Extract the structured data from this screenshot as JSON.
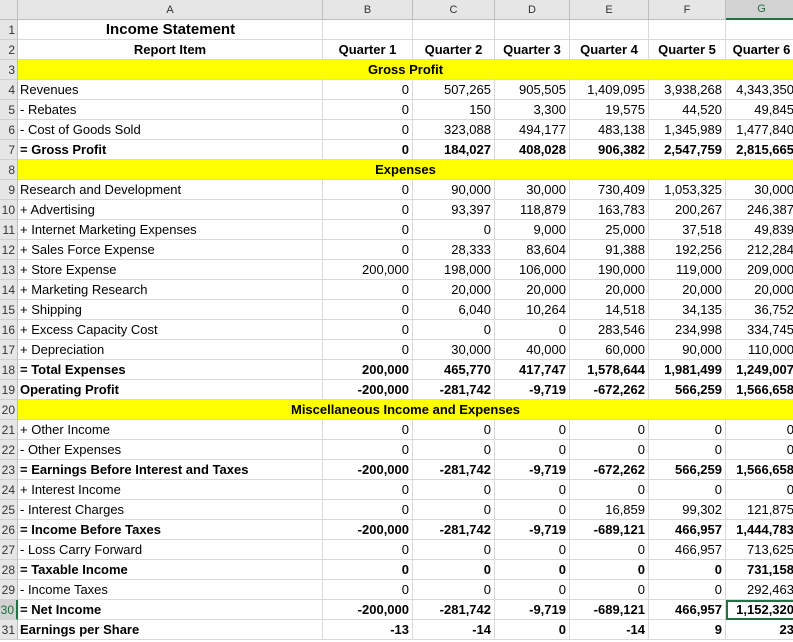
{
  "columns": [
    "A",
    "B",
    "C",
    "D",
    "E",
    "F",
    "G"
  ],
  "row_numbers": [
    "1",
    "2",
    "3",
    "4",
    "5",
    "6",
    "7",
    "8",
    "9",
    "10",
    "11",
    "12",
    "13",
    "14",
    "15",
    "16",
    "17",
    "18",
    "19",
    "20",
    "21",
    "22",
    "23",
    "24",
    "25",
    "26",
    "27",
    "28",
    "29",
    "30",
    "31"
  ],
  "title": "Income Statement",
  "report_item_label": "Report Item",
  "quarters": [
    "Quarter 1",
    "Quarter 2",
    "Quarter 3",
    "Quarter 4",
    "Quarter 5",
    "Quarter 6"
  ],
  "sections": {
    "gross_profit": "Gross Profit",
    "expenses": "Expenses",
    "misc": "Miscellaneous Income and Expenses"
  },
  "active_cell": "G30",
  "accent_color": "#217346",
  "highlight_color": "#ffff00",
  "rows": [
    {
      "r": 4,
      "label": "Revenues",
      "bold": false,
      "v": [
        "0",
        "507,265",
        "905,505",
        "1,409,095",
        "3,938,268",
        "4,343,350"
      ]
    },
    {
      "r": 5,
      "label": "- Rebates",
      "bold": false,
      "v": [
        "0",
        "150",
        "3,300",
        "19,575",
        "44,520",
        "49,845"
      ]
    },
    {
      "r": 6,
      "label": "- Cost of Goods Sold",
      "bold": false,
      "v": [
        "0",
        "323,088",
        "494,177",
        "483,138",
        "1,345,989",
        "1,477,840"
      ]
    },
    {
      "r": 7,
      "label": "= Gross Profit",
      "bold": true,
      "v": [
        "0",
        "184,027",
        "408,028",
        "906,382",
        "2,547,759",
        "2,815,665"
      ]
    },
    {
      "r": 9,
      "label": "Research and Development",
      "bold": false,
      "v": [
        "0",
        "90,000",
        "30,000",
        "730,409",
        "1,053,325",
        "30,000"
      ]
    },
    {
      "r": 10,
      "label": "+ Advertising",
      "bold": false,
      "v": [
        "0",
        "93,397",
        "118,879",
        "163,783",
        "200,267",
        "246,387"
      ]
    },
    {
      "r": 11,
      "label": "+ Internet Marketing Expenses",
      "bold": false,
      "v": [
        "0",
        "0",
        "9,000",
        "25,000",
        "37,518",
        "49,839"
      ]
    },
    {
      "r": 12,
      "label": "+ Sales Force Expense",
      "bold": false,
      "v": [
        "0",
        "28,333",
        "83,604",
        "91,388",
        "192,256",
        "212,284"
      ]
    },
    {
      "r": 13,
      "label": "+ Store Expense",
      "bold": false,
      "v": [
        "200,000",
        "198,000",
        "106,000",
        "190,000",
        "119,000",
        "209,000"
      ]
    },
    {
      "r": 14,
      "label": "+ Marketing Research",
      "bold": false,
      "v": [
        "0",
        "20,000",
        "20,000",
        "20,000",
        "20,000",
        "20,000"
      ]
    },
    {
      "r": 15,
      "label": "+ Shipping",
      "bold": false,
      "v": [
        "0",
        "6,040",
        "10,264",
        "14,518",
        "34,135",
        "36,752"
      ]
    },
    {
      "r": 16,
      "label": "+ Excess Capacity Cost",
      "bold": false,
      "v": [
        "0",
        "0",
        "0",
        "283,546",
        "234,998",
        "334,745"
      ]
    },
    {
      "r": 17,
      "label": "+ Depreciation",
      "bold": false,
      "v": [
        "0",
        "30,000",
        "40,000",
        "60,000",
        "90,000",
        "110,000"
      ]
    },
    {
      "r": 18,
      "label": "= Total Expenses",
      "bold": true,
      "v": [
        "200,000",
        "465,770",
        "417,747",
        "1,578,644",
        "1,981,499",
        "1,249,007"
      ]
    },
    {
      "r": 19,
      "label": "Operating Profit",
      "bold": true,
      "v": [
        "-200,000",
        "-281,742",
        "-9,719",
        "-672,262",
        "566,259",
        "1,566,658"
      ]
    },
    {
      "r": 21,
      "label": "+ Other Income",
      "bold": false,
      "v": [
        "0",
        "0",
        "0",
        "0",
        "0",
        "0"
      ]
    },
    {
      "r": 22,
      "label": "- Other Expenses",
      "bold": false,
      "v": [
        "0",
        "0",
        "0",
        "0",
        "0",
        "0"
      ]
    },
    {
      "r": 23,
      "label": "= Earnings Before Interest and Taxes",
      "bold": true,
      "v": [
        "-200,000",
        "-281,742",
        "-9,719",
        "-672,262",
        "566,259",
        "1,566,658"
      ]
    },
    {
      "r": 24,
      "label": "+ Interest Income",
      "bold": false,
      "v": [
        "0",
        "0",
        "0",
        "0",
        "0",
        "0"
      ]
    },
    {
      "r": 25,
      "label": "- Interest Charges",
      "bold": false,
      "v": [
        "0",
        "0",
        "0",
        "16,859",
        "99,302",
        "121,875"
      ]
    },
    {
      "r": 26,
      "label": "= Income Before Taxes",
      "bold": true,
      "v": [
        "-200,000",
        "-281,742",
        "-9,719",
        "-689,121",
        "466,957",
        "1,444,783"
      ]
    },
    {
      "r": 27,
      "label": "- Loss Carry Forward",
      "bold": false,
      "v": [
        "0",
        "0",
        "0",
        "0",
        "466,957",
        "713,625"
      ]
    },
    {
      "r": 28,
      "label": "= Taxable Income",
      "bold": true,
      "v": [
        "0",
        "0",
        "0",
        "0",
        "0",
        "731,158"
      ]
    },
    {
      "r": 29,
      "label": "- Income Taxes",
      "bold": false,
      "v": [
        "0",
        "0",
        "0",
        "0",
        "0",
        "292,463"
      ]
    },
    {
      "r": 30,
      "label": "= Net Income",
      "bold": true,
      "v": [
        "-200,000",
        "-281,742",
        "-9,719",
        "-689,121",
        "466,957",
        "1,152,320"
      ]
    },
    {
      "r": 31,
      "label": "Earnings per Share",
      "bold": true,
      "v": [
        "-13",
        "-14",
        "0",
        "-14",
        "9",
        "23"
      ]
    }
  ]
}
